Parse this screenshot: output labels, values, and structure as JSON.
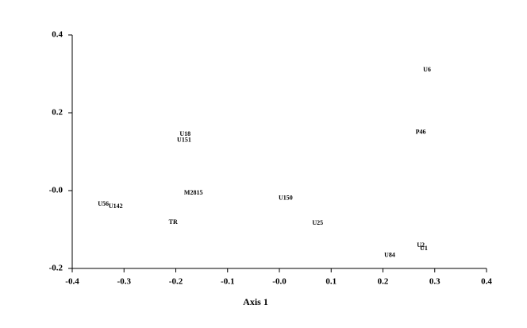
{
  "chart_data": {
    "type": "scatter",
    "xlabel": "Axis 1",
    "points": [
      {
        "label": "U6",
        "x": 0.285,
        "y": 0.31
      },
      {
        "label": "P46",
        "x": 0.273,
        "y": 0.15
      },
      {
        "label": "U18",
        "x": -0.182,
        "y": 0.145
      },
      {
        "label": "U151",
        "x": -0.184,
        "y": 0.129
      },
      {
        "label": "M2815",
        "x": -0.166,
        "y": -0.006
      },
      {
        "label": "U150",
        "x": 0.012,
        "y": -0.02
      },
      {
        "label": "U56",
        "x": -0.34,
        "y": -0.035
      },
      {
        "label": "U142",
        "x": -0.316,
        "y": -0.041
      },
      {
        "label": "TR",
        "x": -0.205,
        "y": -0.082
      },
      {
        "label": "U25",
        "x": 0.074,
        "y": -0.084
      },
      {
        "label": "U2",
        "x": 0.273,
        "y": -0.141
      },
      {
        "label": "U1",
        "x": 0.279,
        "y": -0.149
      },
      {
        "label": "U84",
        "x": 0.213,
        "y": -0.167
      }
    ],
    "xlim": [
      -0.4,
      0.4
    ],
    "ylim": [
      -0.2,
      0.4
    ],
    "xticks": [
      -0.4,
      -0.3,
      -0.2,
      -0.1,
      {
        "value": 0,
        "label": "-0.0"
      },
      0.1,
      0.2,
      0.3,
      0.4
    ],
    "yticks": [
      {
        "value": -0.2,
        "label": "-0.2"
      },
      {
        "value": 0,
        "label": "-0.0"
      },
      0.2,
      0.4
    ],
    "color": "#000000"
  }
}
